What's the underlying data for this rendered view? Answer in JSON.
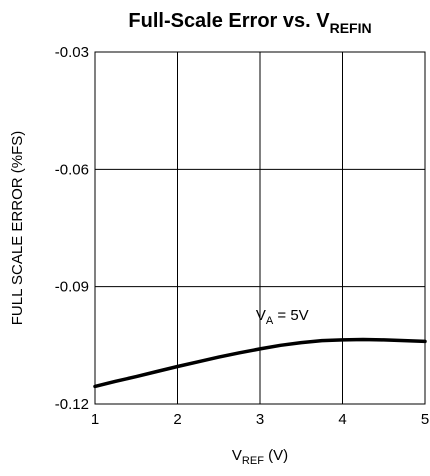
{
  "chart_data": {
    "type": "line",
    "title": "Full-Scale Error vs. V",
    "title_subscript": "REFIN",
    "xlabel_main": "V",
    "xlabel_subscript": "REF",
    "xlabel_suffix": " (V)",
    "ylabel": "FULL SCALE ERROR (%FS)",
    "xlim": [
      1,
      5
    ],
    "ylim": [
      -0.12,
      -0.03
    ],
    "x_ticks": [
      1,
      2,
      3,
      4,
      5
    ],
    "x_tick_labels": [
      "1",
      "2",
      "3",
      "4",
      "5"
    ],
    "y_ticks": [
      -0.03,
      -0.06,
      -0.09,
      -0.12
    ],
    "y_tick_labels": [
      "-0.03",
      "-0.06",
      "-0.09",
      "-0.12"
    ],
    "grid": true,
    "annotation": {
      "main": "V",
      "subscript": "A",
      "suffix": " = 5V",
      "x": 2.95,
      "y": -0.0985
    },
    "series": [
      {
        "color": "#000000",
        "x": [
          1.0,
          1.25,
          1.5,
          1.75,
          2.0,
          2.25,
          2.5,
          2.75,
          3.0,
          3.25,
          3.5,
          3.75,
          4.0,
          4.25,
          4.5,
          4.75,
          5.0
        ],
        "y": [
          -0.1155,
          -0.1142,
          -0.113,
          -0.1117,
          -0.1104,
          -0.1092,
          -0.108,
          -0.1069,
          -0.1059,
          -0.105,
          -0.1043,
          -0.1038,
          -0.1036,
          -0.1035,
          -0.1036,
          -0.1038,
          -0.104
        ]
      }
    ]
  }
}
